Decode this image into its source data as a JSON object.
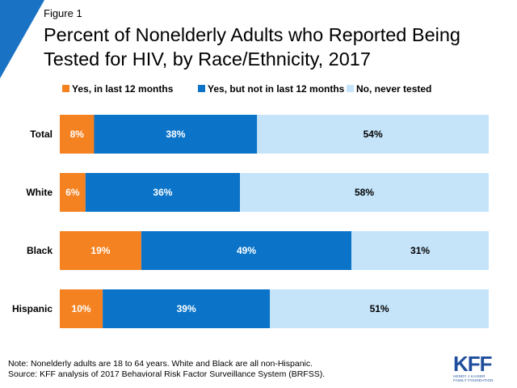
{
  "figure_label": "Figure 1",
  "title_line1": "Percent of Nonelderly Adults who Reported Being",
  "title_line2": "Tested for HIV, by Race/Ethnicity, 2017",
  "chart_data": {
    "type": "bar",
    "orientation": "horizontal",
    "stacked": true,
    "title": "Percent of Nonelderly Adults who Reported Being Tested for HIV, by Race/Ethnicity, 2017",
    "categories": [
      "Total",
      "White",
      "Black",
      "Hispanic"
    ],
    "series": [
      {
        "name": "Yes, in last 12 months",
        "values": [
          8,
          6,
          19,
          10
        ],
        "labels": [
          "8%",
          "6%",
          "19%",
          "10%"
        ],
        "color": "#f58220",
        "label_color": "#ffffff"
      },
      {
        "name": "Yes, but not in last 12 months",
        "values": [
          38,
          36,
          49,
          39
        ],
        "labels": [
          "38%",
          "36%",
          "49%",
          "39%"
        ],
        "color": "#0b74c9",
        "label_color": "#ffffff"
      },
      {
        "name": "No, never tested",
        "values": [
          54,
          58,
          31,
          51
        ],
        "labels": [
          "54%",
          "58%",
          "31%",
          "51%"
        ],
        "color": "#c5e4fa",
        "label_color": "#000000"
      }
    ],
    "xlim": [
      0,
      100
    ],
    "grid": false,
    "legend_position": "top"
  },
  "note_line1": "Note: Nonelderly adults are 18 to 64 years. White and Black are all non-Hispanic.",
  "note_line2": "Source: KFF analysis of 2017 Behavioral Risk Factor Surveillance System (BRFSS).",
  "logo": {
    "main": "KFF",
    "sub_line1": "HENRY J KAISER",
    "sub_line2": "FAMILY FOUNDATION",
    "color": "#1e4e9c"
  }
}
